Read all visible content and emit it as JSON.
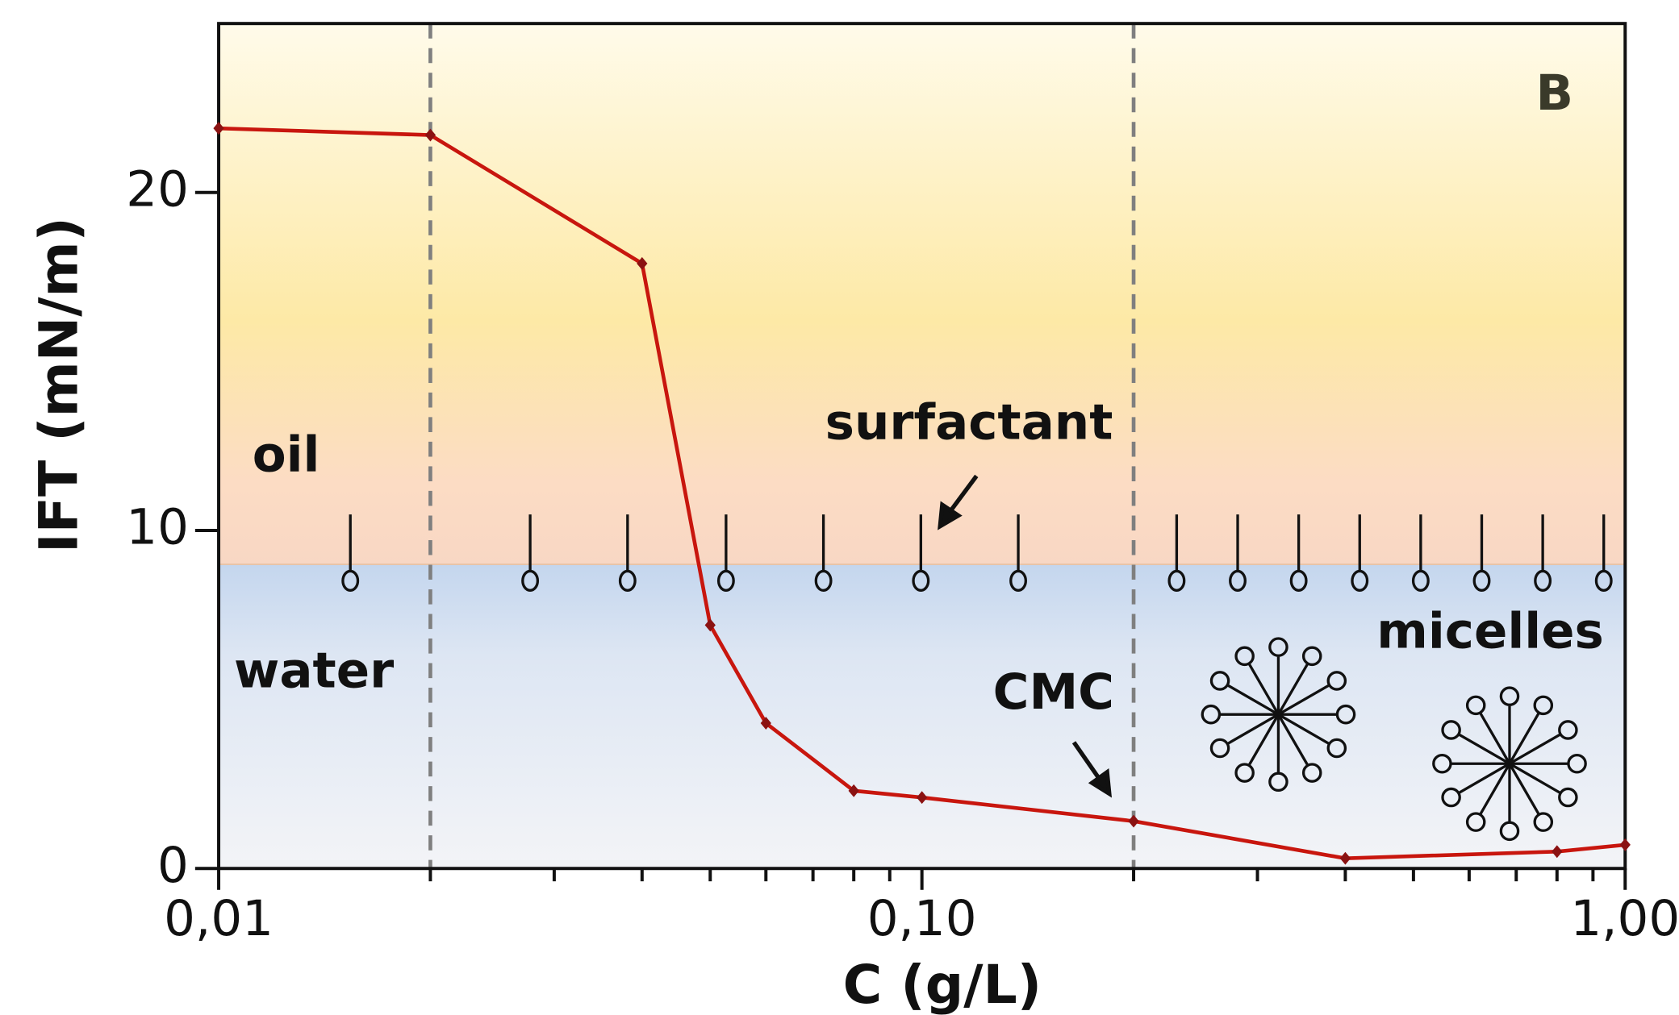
{
  "chart_data": {
    "type": "line",
    "x_label": "C (g/L)",
    "y_label": "IFT (mN/m)",
    "x": [
      0.01,
      0.02,
      0.04,
      0.05,
      0.06,
      0.08,
      0.1,
      0.2,
      0.4,
      0.8,
      1.0
    ],
    "values": [
      21.9,
      21.7,
      17.9,
      7.2,
      4.3,
      2.3,
      2.1,
      1.4,
      0.3,
      0.5,
      0.7
    ],
    "color": "#c8160e",
    "marker_color": "#8b1212",
    "x_log": true,
    "xlim": [
      0.01,
      1.0
    ],
    "ylim": [
      0,
      25
    ],
    "xticks": [
      {
        "value": 0.01,
        "label": "0,01"
      },
      {
        "value": 0.1,
        "label": "0,10"
      },
      {
        "value": 1.0,
        "label": "1,00"
      }
    ],
    "x_minor_ticks": [
      0.02,
      0.03,
      0.04,
      0.05,
      0.06,
      0.07,
      0.08,
      0.09,
      0.2,
      0.3,
      0.4,
      0.5,
      0.6,
      0.7,
      0.8,
      0.9
    ],
    "yticks": [
      0,
      10,
      20
    ],
    "vlines": [
      0.02,
      0.2
    ],
    "interface_y": 9,
    "annotations": {
      "panel": "B",
      "oil": "oil",
      "water": "water",
      "surfactant": "surfactant",
      "cmc": "CMC",
      "micelles": "micelles"
    }
  }
}
